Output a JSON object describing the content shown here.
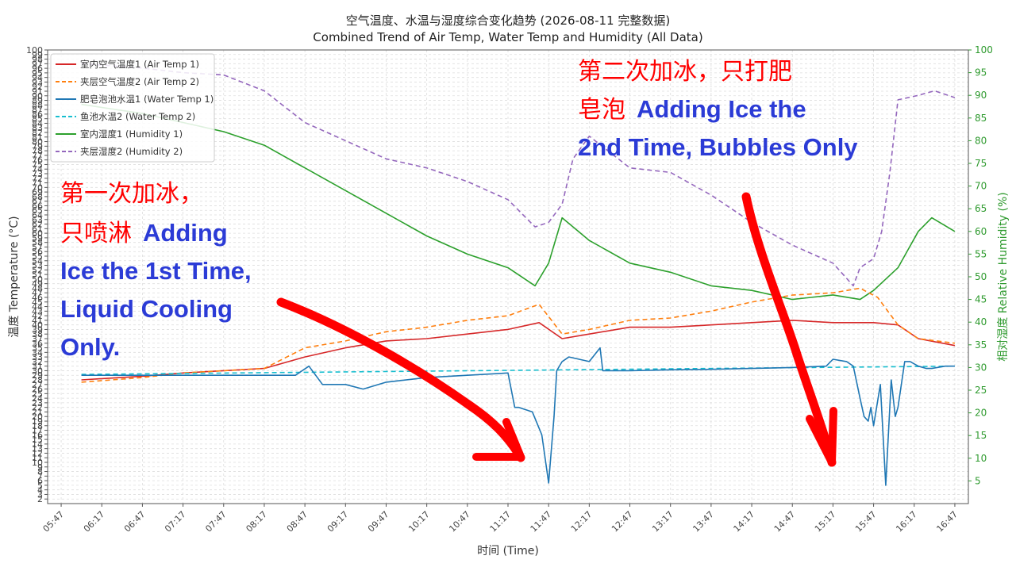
{
  "chart_data": {
    "type": "line",
    "title": "空气温度、水温与湿度综合变化趋势 (2026-08-11 完整数据)",
    "subtitle": "Combined Trend of Air Temp, Water Temp and Humidity (All Data)",
    "xlabel": "时间 (Time)",
    "ylabel": "温度 Temperature (°C)",
    "ylabel_right": "相对湿度 Relative Humidity (%)",
    "xlim": [
      "05:37",
      "16:57"
    ],
    "ylim": [
      1,
      100
    ],
    "ylim_right": [
      0,
      100
    ],
    "x_ticks": [
      "05:47",
      "06:17",
      "06:47",
      "07:17",
      "07:47",
      "08:17",
      "08:47",
      "09:17",
      "09:47",
      "10:17",
      "10:47",
      "11:17",
      "11:47",
      "12:17",
      "12:47",
      "13:17",
      "13:47",
      "14:17",
      "14:47",
      "15:17",
      "15:47",
      "16:17",
      "16:47"
    ],
    "y_ticks_left": [
      2,
      3,
      4,
      5,
      6,
      7,
      8,
      9,
      10,
      11,
      12,
      13,
      14,
      15,
      16,
      17,
      18,
      19,
      20,
      21,
      22,
      23,
      24,
      25,
      26,
      27,
      28,
      29,
      30,
      31,
      32,
      33,
      34,
      35,
      36,
      37,
      38,
      39,
      40,
      41,
      42,
      43,
      44,
      45,
      46,
      47,
      48,
      49,
      50,
      51,
      52,
      53,
      54,
      55,
      56,
      57,
      58,
      59,
      60,
      61,
      62,
      63,
      64,
      65,
      66,
      67,
      68,
      69,
      70,
      71,
      72,
      73,
      74,
      75,
      76,
      77,
      78,
      79,
      80,
      81,
      82,
      83,
      84,
      85,
      86,
      87,
      88,
      89,
      90,
      91,
      92,
      93,
      94,
      95,
      96,
      97,
      98,
      99,
      100
    ],
    "y_ticks_right": [
      5,
      10,
      15,
      20,
      25,
      30,
      35,
      40,
      45,
      50,
      55,
      60,
      65,
      70,
      75,
      80,
      85,
      90,
      95,
      100
    ],
    "grid": true,
    "legend_position": "top-left",
    "series": [
      {
        "name": "室内空气温度1 (Air Temp 1)",
        "axis": "left",
        "color": "#d62728",
        "style": "solid",
        "x": [
          "06:02",
          "06:47",
          "07:17",
          "07:47",
          "08:17",
          "08:47",
          "09:17",
          "09:47",
          "10:17",
          "10:47",
          "11:17",
          "11:40",
          "11:57",
          "12:17",
          "12:47",
          "13:17",
          "13:47",
          "14:17",
          "14:47",
          "15:17",
          "15:47",
          "16:05",
          "16:20",
          "16:47"
        ],
        "y": [
          28,
          28.8,
          29.5,
          30,
          30.5,
          33,
          35,
          36.5,
          37,
          38,
          39,
          40.5,
          37,
          38,
          39.5,
          39.5,
          40,
          40.5,
          41,
          40.5,
          40.5,
          40,
          37,
          35.5
        ]
      },
      {
        "name": "夹层空气温度2 (Air Temp 2)",
        "axis": "left",
        "color": "#ff7f0e",
        "style": "dashed",
        "x": [
          "06:02",
          "06:47",
          "07:17",
          "07:47",
          "08:17",
          "08:47",
          "09:17",
          "09:47",
          "10:17",
          "10:47",
          "11:17",
          "11:40",
          "11:57",
          "12:17",
          "12:47",
          "13:17",
          "13:47",
          "14:17",
          "14:47",
          "15:17",
          "15:37",
          "15:50",
          "16:05",
          "16:20",
          "16:47"
        ],
        "y": [
          27.5,
          28.5,
          29.5,
          30,
          30.5,
          35,
          36.5,
          38.5,
          39.5,
          41,
          42,
          44.5,
          38,
          39,
          41,
          41.5,
          43,
          45,
          46.5,
          47,
          48,
          46,
          40,
          37,
          36
        ]
      },
      {
        "name": "肥皂泡池水温1 (Water Temp 1)",
        "axis": "left",
        "color": "#1f77b4",
        "style": "solid",
        "x": [
          "06:02",
          "06:47",
          "07:47",
          "08:40",
          "08:50",
          "09:00",
          "09:17",
          "09:30",
          "09:47",
          "10:17",
          "10:47",
          "11:17",
          "11:22",
          "11:25",
          "11:35",
          "11:42",
          "11:47",
          "11:51",
          "11:53",
          "11:57",
          "12:02",
          "12:17",
          "12:25",
          "12:27",
          "12:47",
          "13:17",
          "13:47",
          "14:17",
          "14:47",
          "15:12",
          "15:17",
          "15:27",
          "15:32",
          "15:37",
          "15:40",
          "15:43",
          "15:45",
          "15:47",
          "15:52",
          "15:56",
          "16:00",
          "16:03",
          "16:05",
          "16:10",
          "16:14",
          "16:20",
          "16:26",
          "16:30",
          "16:40",
          "16:47"
        ],
        "y": [
          29,
          29,
          29,
          29,
          31,
          27,
          27,
          26,
          27.5,
          28.5,
          29,
          29.5,
          22,
          22,
          21,
          16,
          5.5,
          20,
          30,
          32,
          33,
          32,
          35,
          30,
          30,
          30.2,
          30.3,
          30.5,
          30.7,
          31,
          32.5,
          32,
          31,
          24,
          20,
          19,
          22,
          18,
          27,
          5,
          28,
          20,
          22,
          32,
          32,
          31,
          30.5,
          30.5,
          31,
          31
        ]
      },
      {
        "name": "鱼池水温2 (Water Temp 2)",
        "axis": "left",
        "color": "#17becf",
        "style": "dashed",
        "x": [
          "06:02",
          "16:47"
        ],
        "y": [
          29.2,
          31
        ]
      },
      {
        "name": "室内湿度1 (Humidity 1)",
        "axis": "right",
        "color": "#2ca02c",
        "style": "solid",
        "x": [
          "06:02",
          "06:47",
          "07:17",
          "07:47",
          "08:17",
          "08:47",
          "09:17",
          "09:47",
          "10:17",
          "10:47",
          "11:17",
          "11:37",
          "11:47",
          "11:57",
          "12:17",
          "12:47",
          "13:17",
          "13:47",
          "14:17",
          "14:47",
          "15:17",
          "15:37",
          "15:47",
          "16:05",
          "16:20",
          "16:30",
          "16:47"
        ],
        "y": [
          88,
          86,
          84,
          82,
          79,
          74,
          69,
          64,
          59,
          55,
          52,
          48,
          53,
          63,
          58,
          53,
          51,
          48,
          47,
          45,
          46,
          45,
          47,
          52,
          60,
          63,
          60
        ]
      },
      {
        "name": "夹层湿度2 (Humidity 2)",
        "axis": "right",
        "color": "#9467bd",
        "style": "dashed",
        "x": [
          "06:02",
          "06:47",
          "07:17",
          "07:47",
          "08:17",
          "08:47",
          "09:17",
          "09:47",
          "10:17",
          "10:47",
          "11:17",
          "11:37",
          "11:47",
          "11:57",
          "12:05",
          "12:17",
          "12:47",
          "13:17",
          "13:47",
          "14:17",
          "14:47",
          "15:17",
          "15:32",
          "15:37",
          "15:47",
          "15:53",
          "15:59",
          "16:05",
          "16:20",
          "16:32",
          "16:47"
        ],
        "y": [
          97,
          96,
          95,
          94.5,
          91,
          84,
          80,
          76,
          74,
          71,
          67,
          61,
          62,
          66,
          76,
          81,
          74,
          73,
          68,
          62,
          57,
          53,
          48,
          52,
          54,
          60,
          73,
          89,
          90,
          91,
          89.5
        ]
      }
    ]
  },
  "annotations": {
    "first": {
      "cn_line1": "第一次加冰，",
      "cn_line2": "只喷淋",
      "en_line1": "Adding",
      "en_line2": "Ice the 1st Time,",
      "en_line3": "Liquid Cooling",
      "en_line4": "Only."
    },
    "second": {
      "cn_line1": "第二次加冰，只打肥",
      "cn_line2": "皂泡",
      "en_line1": "Adding Ice the",
      "en_line2": "2nd Time, Bubbles Only"
    },
    "arrow_color": "#ff0000",
    "text_red": "#ff0000",
    "text_blue": "#2b3bd6"
  }
}
